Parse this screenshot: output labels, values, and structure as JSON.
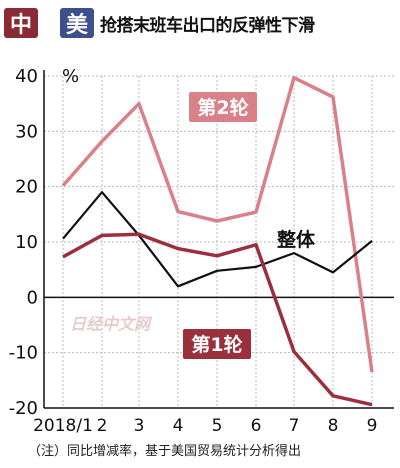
{
  "header": {
    "badge_from": "中",
    "badge_to": "美",
    "title": "抢搭末班车出口的反弹性下滑"
  },
  "note": "（注）同比增减率，基于美国贸易统计分析得出",
  "watermark": "日经中文网",
  "colors": {
    "round2": "#d98089",
    "round1": "#9b2f3c",
    "overall": "#111111",
    "badge_round2": "#d98089",
    "badge_round1": "#9b2f3c",
    "grid": "#bbbbbb",
    "flag_cn": "#8a2a35",
    "flag_us": "#3d4f8c"
  },
  "chart_data": {
    "type": "line",
    "unit": "%",
    "x": [
      "2018/1",
      "2",
      "3",
      "4",
      "5",
      "6",
      "7",
      "8",
      "9"
    ],
    "ylim": [
      -20,
      40
    ],
    "yticks": [
      -20,
      -10,
      0,
      10,
      20,
      30,
      40
    ],
    "grid": true,
    "series": [
      {
        "name": "第2轮",
        "values": [
          20.2,
          28.2,
          35.0,
          15.5,
          13.8,
          15.4,
          39.7,
          36.2,
          -13.5
        ]
      },
      {
        "name": "整体",
        "values": [
          10.6,
          19.0,
          11.2,
          2.0,
          4.8,
          5.5,
          8.0,
          4.5,
          10.2
        ]
      },
      {
        "name": "第1轮",
        "values": [
          7.3,
          11.2,
          11.4,
          8.8,
          7.5,
          9.5,
          -9.8,
          -17.8,
          -19.4
        ]
      }
    ]
  }
}
